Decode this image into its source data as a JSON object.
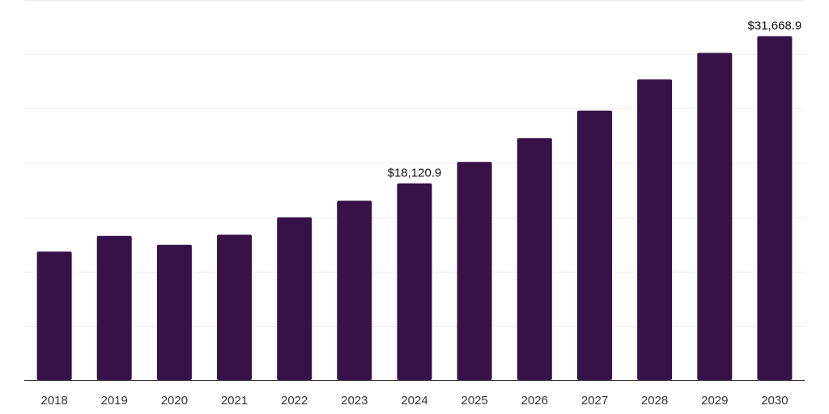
{
  "chart_data": {
    "type": "bar",
    "title": "",
    "xlabel": "",
    "ylabel": "",
    "categories": [
      "2018",
      "2019",
      "2020",
      "2021",
      "2022",
      "2023",
      "2024",
      "2025",
      "2026",
      "2027",
      "2028",
      "2029",
      "2030"
    ],
    "values": [
      11830,
      13280,
      12450,
      13380,
      14980,
      16510,
      18120.9,
      20090,
      22270,
      24810,
      27680,
      30130,
      31668.9
    ],
    "data_labels": [
      {
        "category": "2024",
        "text": "$18,120.9"
      },
      {
        "category": "2030",
        "text": "$31,668.9"
      }
    ],
    "ylim": [
      0,
      35000
    ],
    "gridlines": [
      0,
      5000,
      10000,
      15000,
      20000,
      25000,
      30000,
      35000
    ],
    "grid": true,
    "bar_color": "#371249"
  }
}
